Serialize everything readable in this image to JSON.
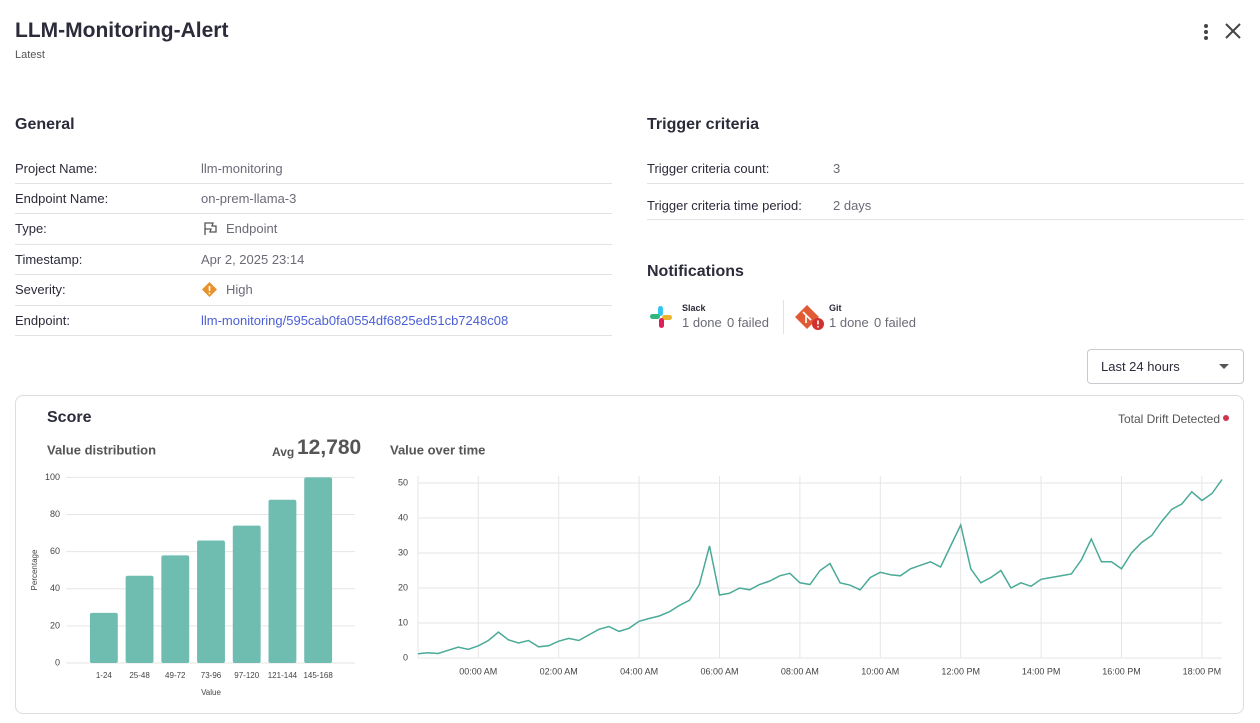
{
  "header": {
    "title": "LLM-Monitoring-Alert",
    "subtitle": "Latest"
  },
  "general": {
    "title": "General",
    "rows": [
      {
        "label": "Project Name:",
        "value": "llm-monitoring"
      },
      {
        "label": "Endpoint Name:",
        "value": "on-prem-llama-3"
      },
      {
        "label": "Type:",
        "value": "Endpoint"
      },
      {
        "label": "Timestamp:",
        "value": "Apr 2, 2025 23:14"
      },
      {
        "label": "Severity:",
        "value": "High"
      },
      {
        "label": "Endpoint:",
        "value": "llm-monitoring/595cab0fa0554df6825ed51cb7248c08"
      }
    ]
  },
  "trigger": {
    "title": "Trigger criteria",
    "rows": [
      {
        "label": "Trigger criteria count:",
        "value": "3"
      },
      {
        "label": "Trigger criteria time period:",
        "value": "2 days"
      }
    ]
  },
  "notifications": {
    "title": "Notifications",
    "items": [
      {
        "name": "Slack",
        "done": "1 done",
        "failed": "0 failed"
      },
      {
        "name": "Git",
        "done": "1 done",
        "failed": "0 failed"
      }
    ]
  },
  "time_range": "Last 24 hours",
  "score": {
    "title": "Score",
    "drift": "Total Drift Detected",
    "avg_label": "Avg",
    "avg_value": "12,780"
  },
  "chart_data": [
    {
      "type": "bar",
      "title": "Value distribution",
      "x_label": "Value",
      "y_label": "Percentage",
      "categories": [
        "1-24",
        "25-48",
        "49-72",
        "73-96",
        "97-120",
        "121-144",
        "145-168"
      ],
      "values": [
        27,
        47,
        58,
        66,
        74,
        88,
        100
      ],
      "color": "#6fbcb0",
      "ylim": [
        0,
        104
      ],
      "yticks": [
        0,
        20,
        40,
        60,
        80,
        100
      ],
      "grid": true
    },
    {
      "type": "line",
      "title": "Value over time",
      "color": "#4aaa97",
      "x": [
        -1.5,
        -1.25,
        -1,
        -0.75,
        -0.5,
        -0.25,
        0,
        0.25,
        0.5,
        0.75,
        1,
        1.25,
        1.5,
        1.75,
        2,
        2.25,
        2.5,
        2.75,
        3,
        3.25,
        3.5,
        3.75,
        4,
        4.25,
        4.5,
        4.75,
        5,
        5.25,
        5.5,
        5.75,
        6,
        6.25,
        6.5,
        6.75,
        7,
        7.25,
        7.5,
        7.75,
        8,
        8.25,
        8.5,
        8.75,
        9,
        9.25,
        9.5,
        9.75,
        10,
        10.25,
        10.5,
        10.75,
        11,
        11.25,
        11.5,
        11.75,
        12,
        12.25,
        12.5,
        12.75,
        13,
        13.25,
        13.5,
        13.75,
        14,
        14.25,
        14.5,
        14.75,
        15,
        15.25,
        15.5,
        15.75,
        16,
        16.25,
        16.5,
        16.75,
        17,
        17.25,
        17.5,
        17.75,
        18,
        18.25,
        18.5
      ],
      "values": [
        1.2,
        1.5,
        1.3,
        2.2,
        3.1,
        2.5,
        3.5,
        5,
        7.4,
        5.2,
        4.3,
        5,
        3.2,
        3.5,
        4.8,
        5.6,
        5,
        6.6,
        8.2,
        9,
        7.6,
        8.5,
        10.5,
        11.3,
        12,
        13.2,
        15,
        16.5,
        21,
        32,
        18,
        18.5,
        20,
        19.5,
        21,
        22,
        23.5,
        24.2,
        21.5,
        21,
        25,
        27,
        21.5,
        20.8,
        19.5,
        23,
        24.5,
        23.8,
        23.5,
        25.5,
        26.5,
        27.5,
        26,
        32,
        38,
        25.5,
        21.5,
        23,
        25,
        20,
        21.5,
        20.5,
        22.5,
        23,
        23.5,
        24,
        28,
        34,
        27.5,
        27.5,
        25.5,
        30,
        33,
        35,
        39,
        42.5,
        44,
        47.5,
        45,
        47,
        51
      ],
      "xlim": [
        -1.5,
        18.5
      ],
      "xticks": [
        {
          "value": 0,
          "label": "00:00 AM"
        },
        {
          "value": 2,
          "label": "02:00 AM"
        },
        {
          "value": 4,
          "label": "04:00 AM"
        },
        {
          "value": 6,
          "label": "06:00 AM"
        },
        {
          "value": 8,
          "label": "08:00 AM"
        },
        {
          "value": 10,
          "label": "10:00 AM"
        },
        {
          "value": 12,
          "label": "12:00 PM"
        },
        {
          "value": 14,
          "label": "14:00 PM"
        },
        {
          "value": 16,
          "label": "16:00 PM"
        },
        {
          "value": 18,
          "label": "18:00 PM"
        }
      ],
      "ylim": [
        0,
        52
      ],
      "yticks": [
        0,
        10,
        20,
        30,
        40,
        50
      ],
      "grid": true
    }
  ]
}
